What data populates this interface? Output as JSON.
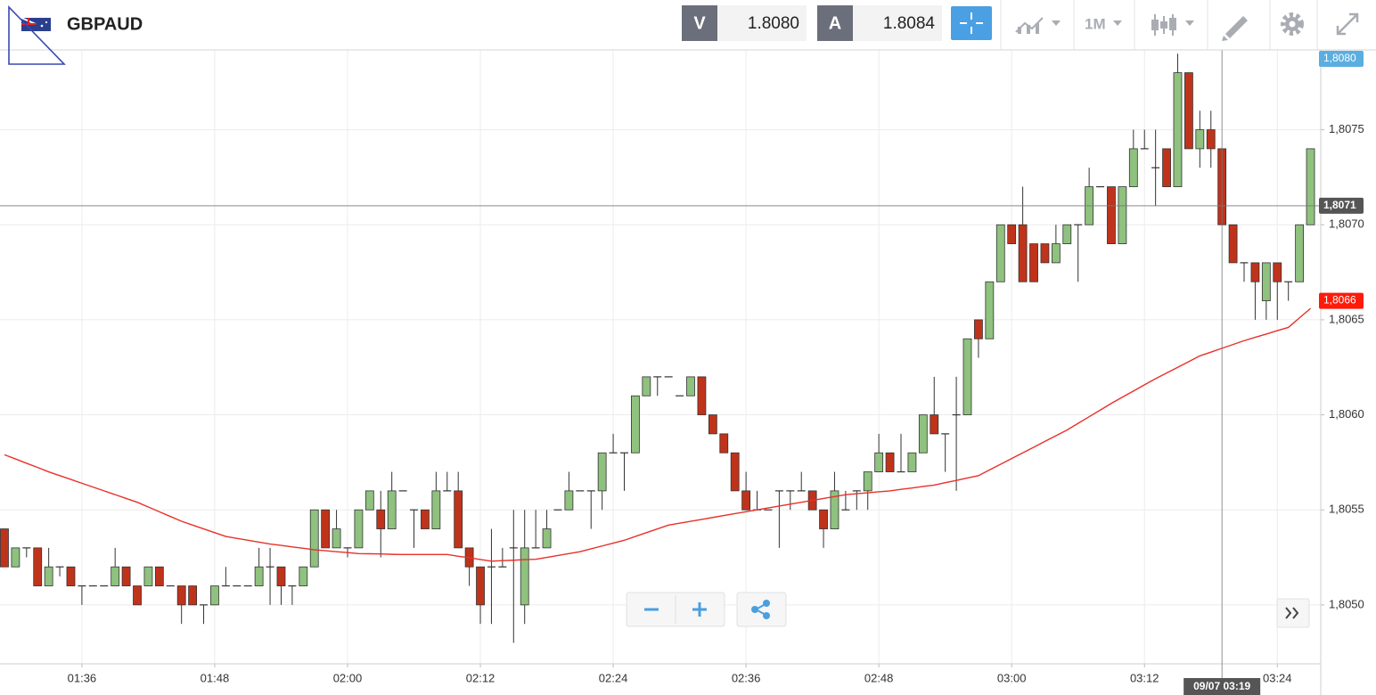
{
  "toolbar": {
    "bid_label": "V",
    "bid": "1.8080",
    "ask_label": "A",
    "ask": "1.8084",
    "timeframe": "1M"
  },
  "chart_data": {
    "type": "candlestick",
    "title": "GBPAUD",
    "categories": [
      null,
      null,
      null,
      null,
      null,
      null,
      null,
      "01:36",
      null,
      null,
      null,
      null,
      null,
      null,
      null,
      null,
      null,
      null,
      null,
      "01:48",
      null,
      null,
      null,
      null,
      null,
      null,
      null,
      null,
      null,
      null,
      null,
      "02:00",
      null,
      null,
      null,
      null,
      null,
      null,
      null,
      null,
      null,
      null,
      null,
      "02:12",
      null,
      null,
      null,
      null,
      null,
      null,
      null,
      null,
      null,
      null,
      null,
      "02:24",
      null,
      null,
      null,
      null,
      null,
      null,
      null,
      null,
      null,
      null,
      null,
      "02:36",
      null,
      null,
      null,
      null,
      null,
      null,
      null,
      null,
      null,
      null,
      null,
      "02:48",
      null,
      null,
      null,
      null,
      null,
      null,
      null,
      null,
      null,
      null,
      null,
      "03:00",
      null,
      null,
      null,
      null,
      null,
      null,
      null,
      null,
      null,
      null,
      null,
      "03:12",
      null,
      null,
      null,
      null,
      null,
      null,
      null,
      null,
      null,
      null,
      null,
      "03:24",
      null,
      null,
      null
    ],
    "open": [
      1.8054,
      1.8052,
      1.8053,
      1.8053,
      1.8051,
      1.8052,
      1.8052,
      1.8051,
      1.8051,
      1.8051,
      1.8051,
      1.8052,
      1.8051,
      1.8051,
      1.8052,
      1.8051,
      1.8051,
      1.8051,
      1.805,
      1.805,
      1.8051,
      1.8051,
      1.8051,
      1.8051,
      1.8052,
      1.8052,
      1.8051,
      1.8051,
      1.8052,
      1.8055,
      1.8053,
      1.8053,
      1.8053,
      1.8055,
      1.8055,
      1.8054,
      1.8056,
      1.8055,
      1.8055,
      1.8054,
      1.8056,
      1.8056,
      1.8053,
      1.8052,
      1.8052,
      1.8052,
      1.8053,
      1.805,
      1.8053,
      1.8053,
      1.8055,
      1.8055,
      1.8056,
      1.8056,
      1.8056,
      1.8058,
      1.8058,
      1.8058,
      1.8061,
      1.8062,
      1.8062,
      1.8061,
      1.8061,
      1.8062,
      1.806,
      1.8059,
      1.8058,
      1.8056,
      1.8055,
      1.8055,
      1.8056,
      1.8056,
      1.8056,
      1.8056,
      1.8055,
      1.8054,
      1.8055,
      1.8056,
      1.8056,
      1.8057,
      1.8058,
      1.8057,
      1.8057,
      1.8058,
      1.806,
      1.8059,
      1.806,
      1.806,
      1.8065,
      1.8064,
      1.8067,
      1.807,
      1.807,
      1.8069,
      1.8069,
      1.8068,
      1.8069,
      1.807,
      1.807,
      1.8072,
      1.8072,
      1.8069,
      1.8072,
      1.8074,
      1.8073,
      1.8074,
      1.8072,
      1.8078,
      1.8074,
      1.8075,
      1.8074,
      1.807,
      1.8068,
      1.8068,
      1.8066,
      1.8068,
      1.8067,
      1.8067,
      1.807
    ],
    "high": [
      1.8054,
      1.8053,
      1.8053,
      1.8053,
      1.8053,
      1.8052,
      1.8052,
      1.8051,
      1.8051,
      1.8051,
      1.8053,
      1.8052,
      1.8051,
      1.8052,
      1.8052,
      1.8051,
      1.8051,
      1.8051,
      1.805,
      1.8051,
      1.8052,
      1.8051,
      1.8051,
      1.8053,
      1.8053,
      1.8052,
      1.8051,
      1.8052,
      1.8055,
      1.8055,
      1.8055,
      1.8053,
      1.8055,
      1.8056,
      1.8056,
      1.8057,
      1.8056,
      1.8055,
      1.8055,
      1.8057,
      1.8057,
      1.8057,
      1.8053,
      1.8052,
      1.8054,
      1.8053,
      1.8055,
      1.8055,
      1.8055,
      1.8055,
      1.8055,
      1.8057,
      1.8056,
      1.8056,
      1.8058,
      1.8059,
      1.8058,
      1.8061,
      1.8062,
      1.8062,
      1.8062,
      1.8061,
      1.8062,
      1.8062,
      1.806,
      1.8059,
      1.8058,
      1.8057,
      1.8056,
      1.8055,
      1.8056,
      1.8056,
      1.8057,
      1.8056,
      1.8055,
      1.8057,
      1.8056,
      1.8056,
      1.8057,
      1.8059,
      1.8058,
      1.8059,
      1.8058,
      1.806,
      1.8062,
      1.8059,
      1.8062,
      1.8064,
      1.8065,
      1.8067,
      1.807,
      1.807,
      1.8072,
      1.8069,
      1.8069,
      1.807,
      1.807,
      1.807,
      1.8073,
      1.8072,
      1.8072,
      1.8072,
      1.8075,
      1.8075,
      1.8075,
      1.8074,
      1.8079,
      1.8078,
      1.8076,
      1.8076,
      1.8074,
      1.807,
      1.8068,
      1.8068,
      1.8068,
      1.8068,
      1.8067,
      1.807,
      1.8074
    ],
    "low": [
      1.8052,
      1.8052,
      1.80525,
      1.8051,
      1.8051,
      1.80515,
      1.8051,
      1.805,
      1.8051,
      1.8051,
      1.8051,
      1.8051,
      1.805,
      1.8051,
      1.8051,
      1.8051,
      1.8049,
      1.805,
      1.8049,
      1.805,
      1.8051,
      1.8051,
      1.8051,
      1.8051,
      1.805,
      1.805,
      1.805,
      1.8051,
      1.8052,
      1.8053,
      1.8053,
      1.80525,
      1.8053,
      1.8055,
      1.80525,
      1.8054,
      1.8056,
      1.8053,
      1.8054,
      1.8054,
      1.8056,
      1.8053,
      1.8051,
      1.8049,
      1.8049,
      1.8052,
      1.8048,
      1.8049,
      1.8053,
      1.8053,
      1.8055,
      1.8055,
      1.8056,
      1.8054,
      1.8055,
      1.8058,
      1.8056,
      1.8058,
      1.8061,
      1.8061,
      1.8062,
      1.8061,
      1.8061,
      1.806,
      1.8059,
      1.8058,
      1.8056,
      1.8055,
      1.8055,
      1.8055,
      1.8053,
      1.8055,
      1.8056,
      1.8055,
      1.8053,
      1.8054,
      1.8055,
      1.8055,
      1.8055,
      1.8057,
      1.8057,
      1.8057,
      1.8057,
      1.8058,
      1.8059,
      1.8057,
      1.8056,
      1.806,
      1.8063,
      1.8064,
      1.8067,
      1.8069,
      1.8067,
      1.8067,
      1.8068,
      1.8068,
      1.8069,
      1.8067,
      1.807,
      1.8072,
      1.8069,
      1.8069,
      1.8072,
      1.8074,
      1.8071,
      1.8072,
      1.8072,
      1.8074,
      1.8073,
      1.8073,
      1.807,
      1.8068,
      1.8067,
      1.8065,
      1.8065,
      1.8065,
      1.8066,
      1.8067,
      1.807
    ],
    "close": [
      1.8052,
      1.8053,
      1.8053,
      1.8051,
      1.8052,
      1.8052,
      1.8051,
      1.8051,
      1.8051,
      1.8051,
      1.8052,
      1.8051,
      1.805,
      1.8052,
      1.8051,
      1.8051,
      1.805,
      1.805,
      1.805,
      1.8051,
      1.8051,
      1.8051,
      1.8051,
      1.8052,
      1.8052,
      1.8051,
      1.8051,
      1.8052,
      1.8055,
      1.8053,
      1.8054,
      1.8053,
      1.8055,
      1.8056,
      1.8054,
      1.8056,
      1.8056,
      1.8055,
      1.8054,
      1.8056,
      1.8056,
      1.8053,
      1.8052,
      1.805,
      1.8052,
      1.8052,
      1.8053,
      1.8053,
      1.8053,
      1.8054,
      1.8055,
      1.8056,
      1.8056,
      1.8056,
      1.8058,
      1.8058,
      1.8058,
      1.8061,
      1.8062,
      1.8062,
      1.8062,
      1.8061,
      1.8062,
      1.806,
      1.8059,
      1.8058,
      1.8056,
      1.8055,
      1.8055,
      1.8055,
      1.8056,
      1.8056,
      1.8056,
      1.8055,
      1.8054,
      1.8056,
      1.8055,
      1.8056,
      1.8057,
      1.8058,
      1.8057,
      1.8057,
      1.8058,
      1.806,
      1.8059,
      1.8059,
      1.806,
      1.8064,
      1.8064,
      1.8067,
      1.807,
      1.8069,
      1.8067,
      1.8067,
      1.8068,
      1.8069,
      1.807,
      1.807,
      1.8072,
      1.8072,
      1.8069,
      1.8072,
      1.8074,
      1.8074,
      1.8073,
      1.8072,
      1.8078,
      1.8074,
      1.8075,
      1.8074,
      1.807,
      1.8068,
      1.8068,
      1.8067,
      1.8068,
      1.8067,
      1.8067,
      1.807,
      1.8074
    ],
    "up_color": "#8fc17f",
    "down_color": "#c0331b",
    "ma": {
      "color": "#e8312a",
      "values": [
        1.80579,
        1.805768,
        1.805745,
        1.805723,
        1.8057,
        1.80568,
        1.80566,
        1.80564,
        1.80562,
        1.8056,
        1.80558,
        1.80556,
        1.80554,
        1.805515,
        1.80549,
        1.805465,
        1.80544,
        1.80542,
        1.8054,
        1.80538,
        1.80536,
        1.80535,
        1.80534,
        1.80533,
        1.80532,
        1.805313,
        1.805305,
        1.805298,
        1.80529,
        1.805285,
        1.80528,
        1.805275,
        1.80527,
        1.805269,
        1.805268,
        1.805266,
        1.805265,
        1.805265,
        1.805265,
        1.805265,
        1.805265,
        1.805256,
        1.805248,
        1.805239,
        1.80523,
        1.805233,
        1.805235,
        1.805238,
        1.80524,
        1.80525,
        1.80526,
        1.80527,
        1.80528,
        1.805295,
        1.80531,
        1.805325,
        1.80534,
        1.80536,
        1.80538,
        1.8054,
        1.80542,
        1.80543,
        1.80544,
        1.80545,
        1.80546,
        1.80547,
        1.80548,
        1.80549,
        1.8055,
        1.80551,
        1.80552,
        1.80553,
        1.80554,
        1.80555,
        1.80556,
        1.80557,
        1.80558,
        1.805585,
        1.80559,
        1.805595,
        1.8056,
        1.805608,
        1.805615,
        1.805623,
        1.80563,
        1.805643,
        1.805655,
        1.805668,
        1.80568,
        1.80571,
        1.80574,
        1.80577,
        1.8058,
        1.80583,
        1.80586,
        1.80589,
        1.80592,
        1.805955,
        1.80599,
        1.806025,
        1.80606,
        1.806093,
        1.806125,
        1.806158,
        1.80619,
        1.80622,
        1.80625,
        1.80628,
        1.80631,
        1.80633,
        1.80635,
        1.80637,
        1.80639,
        1.806408,
        1.806425,
        1.806443,
        1.80646,
        1.80651,
        1.80656
      ]
    },
    "ylim": [
      1.80469,
      1.80792
    ],
    "yticks": [
      {
        "value": 1.805,
        "label": "1,8050"
      },
      {
        "value": 1.8055,
        "label": "1,8055"
      },
      {
        "value": 1.806,
        "label": "1,8060"
      },
      {
        "value": 1.8065,
        "label": "1,8065"
      },
      {
        "value": 1.807,
        "label": "1,8070"
      },
      {
        "value": 1.8075,
        "label": "1,8075"
      }
    ],
    "grid": true,
    "crosshair": {
      "value": 1.8071,
      "label": "1,8071",
      "time_label": "09/07 03:19"
    },
    "price_tags": [
      {
        "value": 1.808,
        "label": "1,8080",
        "color": "#5aaee0"
      },
      {
        "value": 1.8066,
        "label": "1,8066",
        "color": "#ff1a0a"
      }
    ]
  }
}
